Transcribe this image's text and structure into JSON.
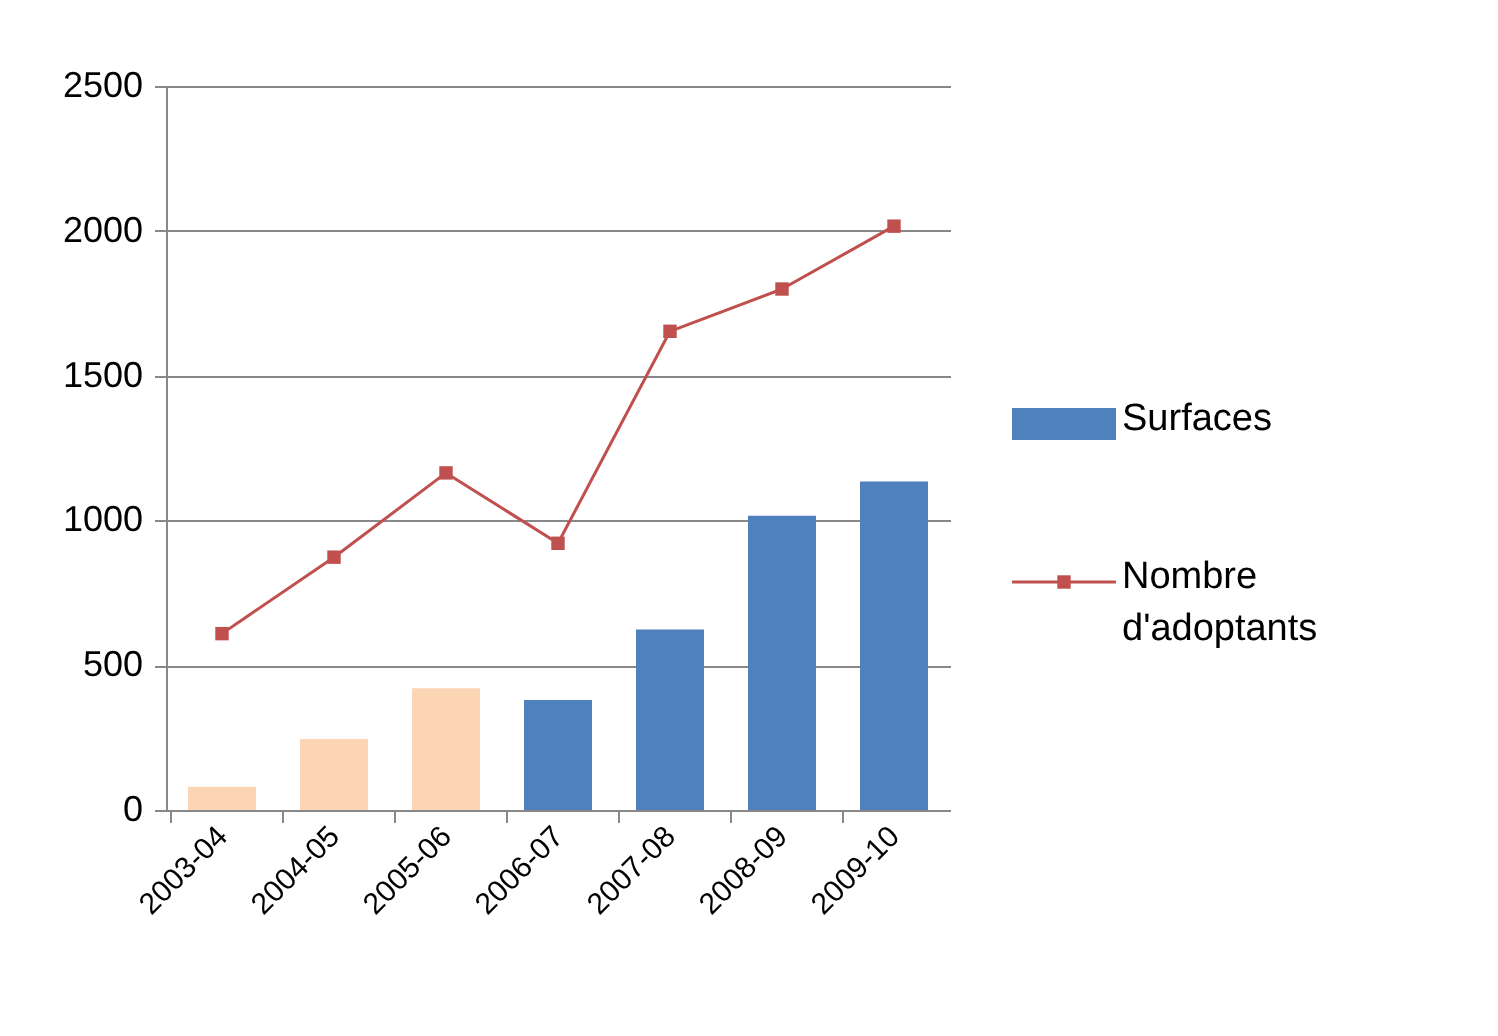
{
  "chart_data": {
    "type": "bar",
    "categories": [
      "2003-04",
      "2004-05",
      "2005-06",
      "2006-07",
      "2007-08",
      "2008-09",
      "2009-10"
    ],
    "series": [
      {
        "name": "Surfaces",
        "color": "#4f81bd",
        "colors": [
          "#fcd5b5",
          "#fcd5b5",
          "#fcd5b5",
          "#4f81bd",
          "#4f81bd",
          "#4f81bd",
          "#4f81bd"
        ],
        "values": [
          80,
          245,
          420,
          380,
          623,
          1016,
          1134
        ]
      },
      {
        "name": "Nombre d'adoptants",
        "type": "line",
        "color": "#c0504d",
        "marker": "square",
        "values": [
          609,
          873,
          1164,
          921,
          1653,
          1799,
          2016
        ]
      }
    ],
    "ylim": [
      0,
      2500
    ],
    "yticks": [
      0,
      500,
      1000,
      1500,
      2000,
      2500
    ],
    "grid": "y",
    "legend": "right"
  }
}
